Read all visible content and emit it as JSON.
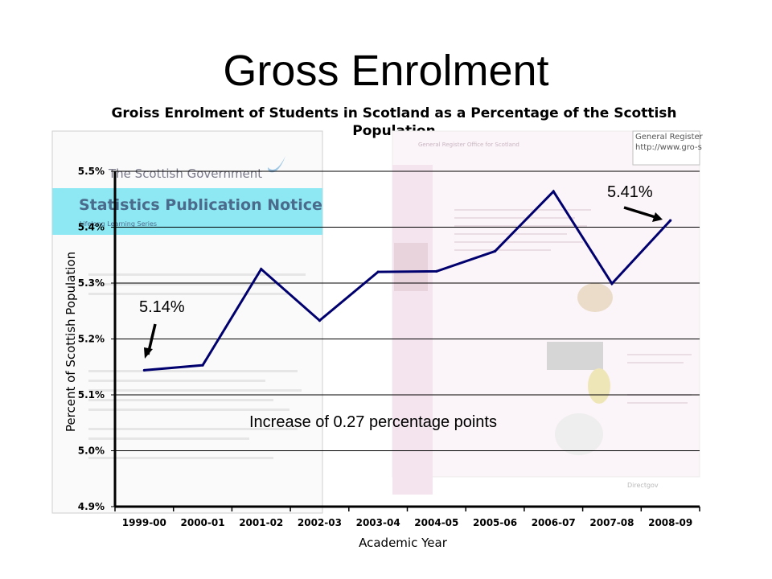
{
  "slide": {
    "title": "Gross Enrolment"
  },
  "background_collage": {
    "gov_name": "The Scottish Government",
    "banner": "Statistics Publication Notice",
    "banner_sub": "Lifelong Learning Series",
    "gro_label": "General Register",
    "gro_url": "http://www.gro-s",
    "gro_logo_text": "General Register Office for Scotland",
    "directgov": "Directgov"
  },
  "chart_data": {
    "type": "line",
    "title": "Groiss Enrolment of Students in Scotland as a Percentage of the Scottish Population",
    "xlabel": "Academic Year",
    "ylabel": "Percent of Scottish Population",
    "categories": [
      "1999-00",
      "2000-01",
      "2001-02",
      "2002-03",
      "2003-04",
      "2004-05",
      "2005-06",
      "2006-07",
      "2007-08",
      "2008-09"
    ],
    "series": [
      {
        "values": [
          5.144,
          5.153,
          5.325,
          5.233,
          5.32,
          5.321,
          5.357,
          5.464,
          5.299,
          5.412
        ]
      }
    ],
    "ylim": [
      4.9,
      5.5
    ],
    "yticks": [
      "4.9%",
      "5.0%",
      "5.1%",
      "5.2%",
      "5.3%",
      "5.4%",
      "5.5%"
    ],
    "grid": "horizontal",
    "line_color": "#00006e",
    "annotations": [
      {
        "text": "5.14%",
        "category_index": 0
      },
      {
        "text": "5.41%",
        "category_index": 9
      },
      {
        "text": "Increase of 0.27 percentage points"
      }
    ]
  }
}
